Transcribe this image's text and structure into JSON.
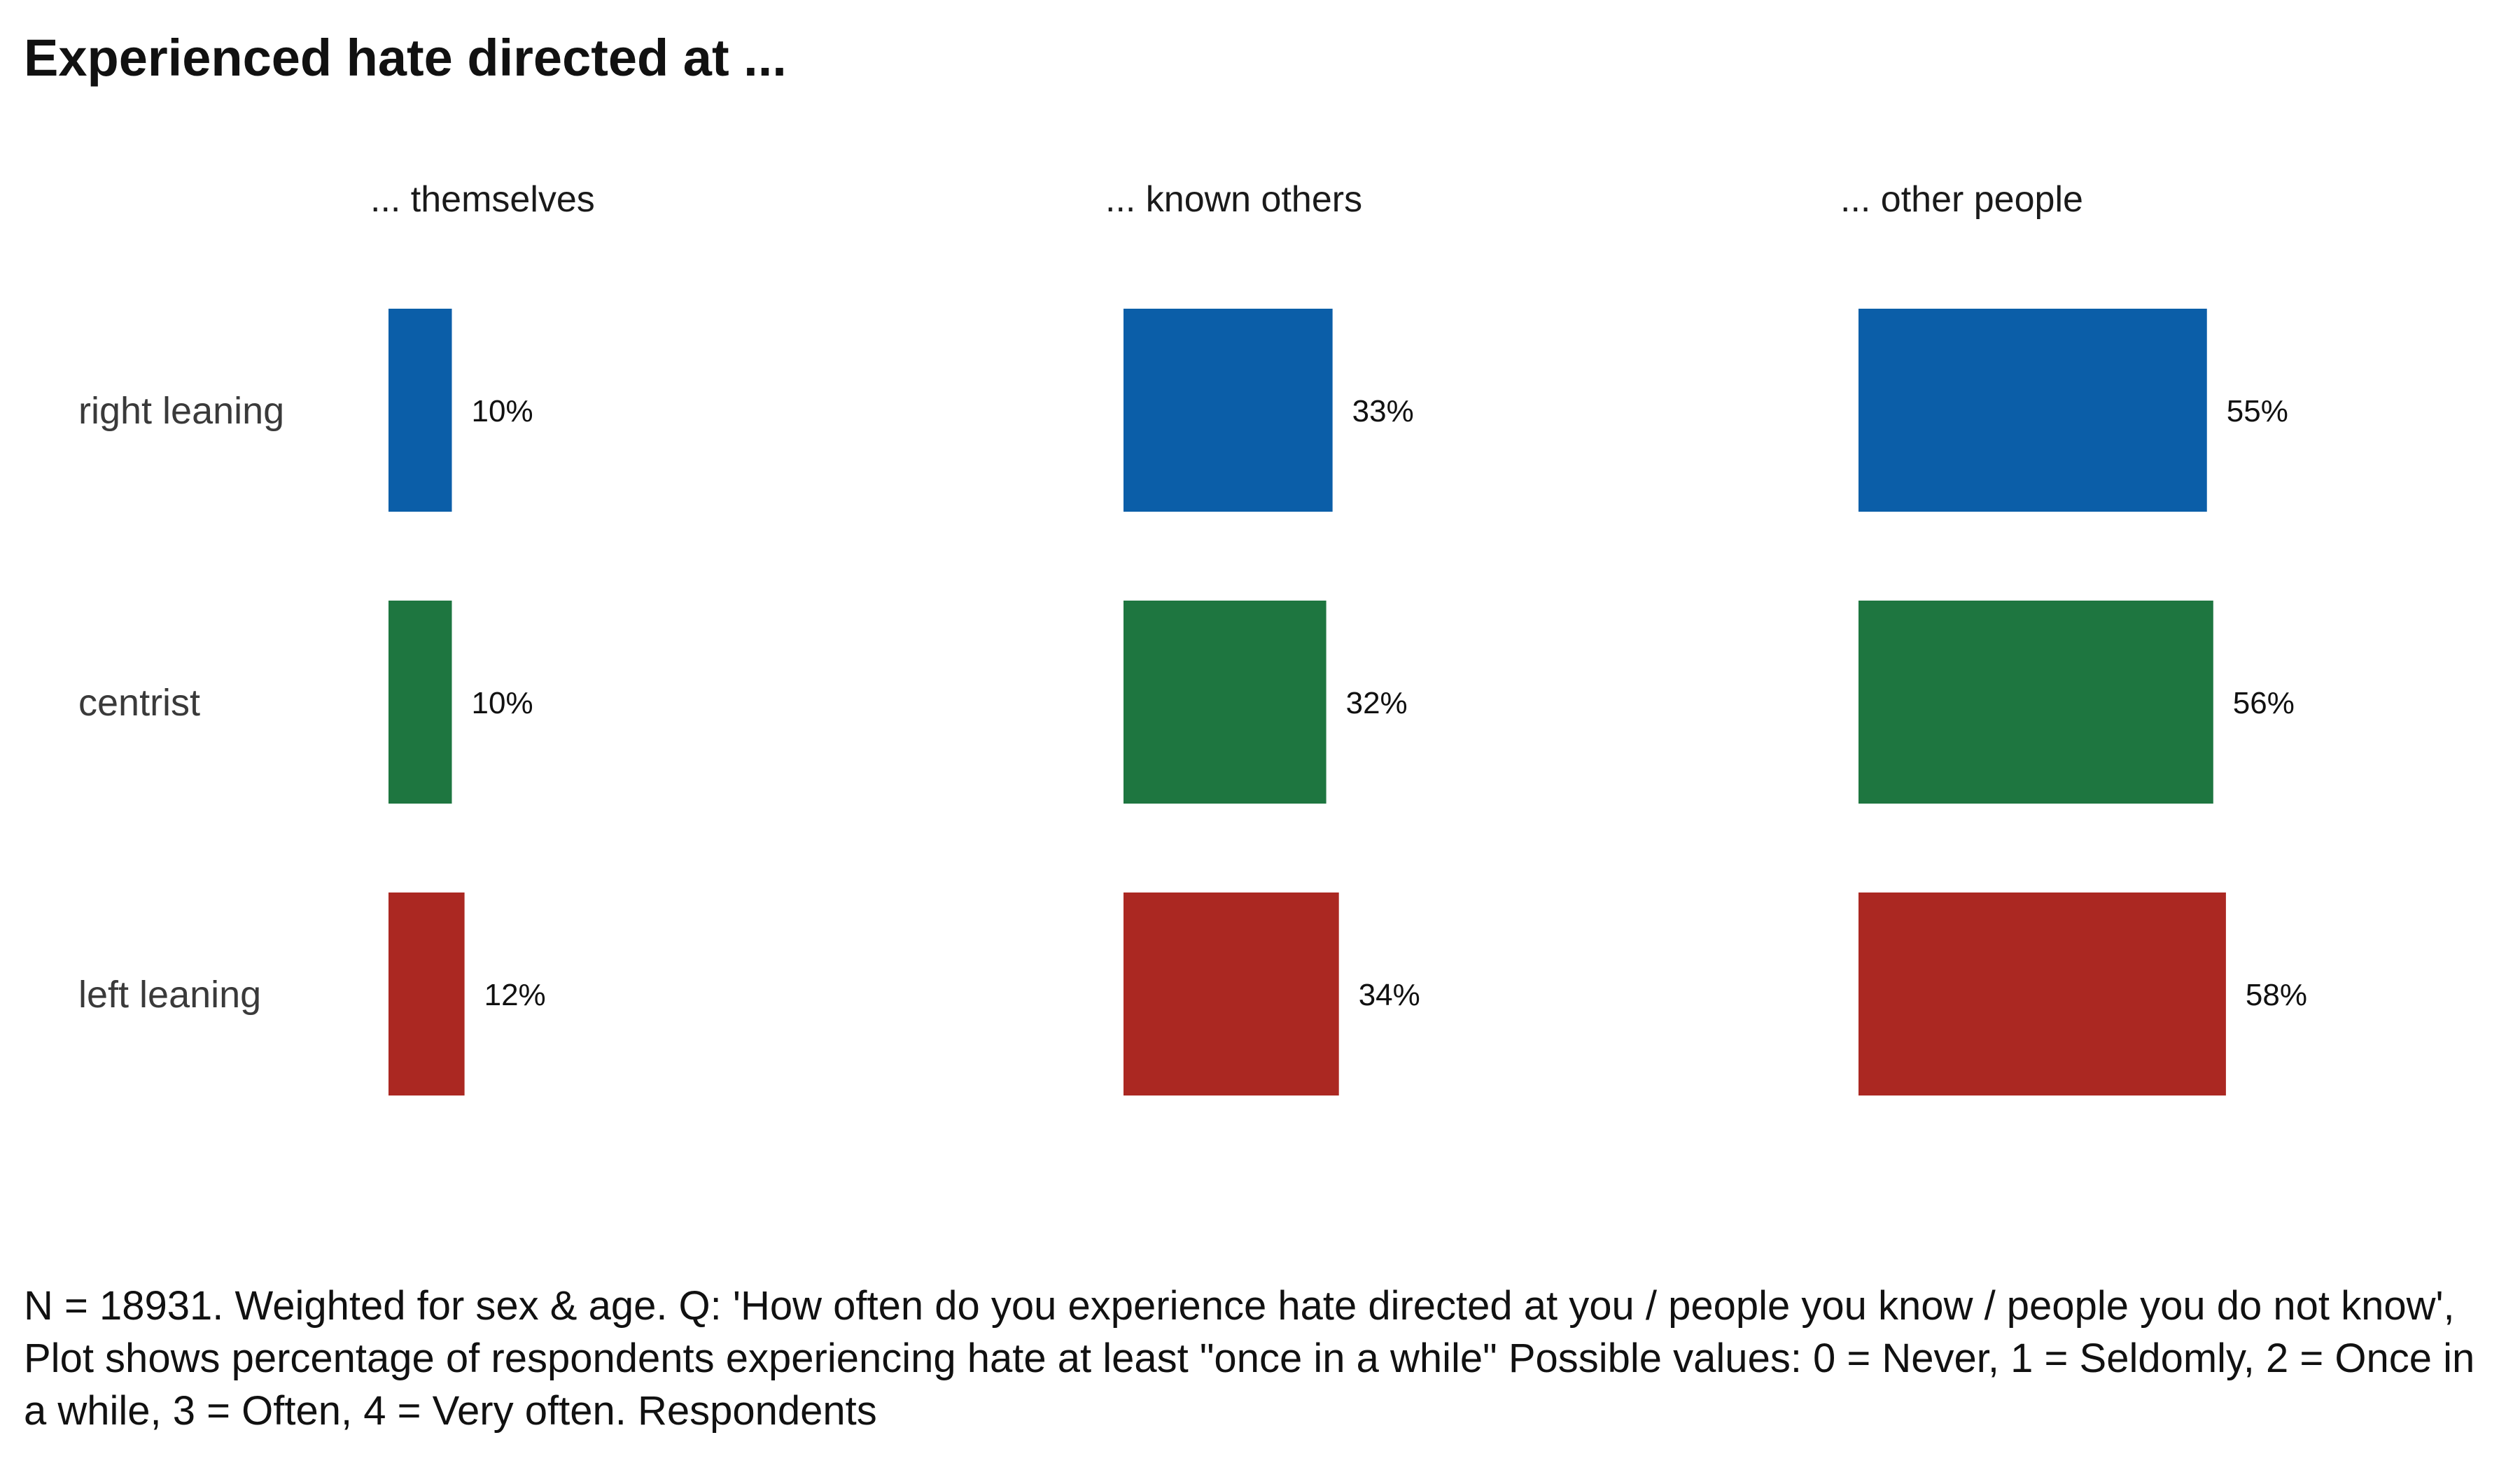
{
  "chart_data": {
    "type": "bar",
    "orientation": "horizontal",
    "title": "Experienced hate directed at ...",
    "facets": [
      "... themselves",
      "... known others",
      "... other people"
    ],
    "categories": [
      "right leaning",
      "centrist",
      "left leaning"
    ],
    "value_suffix": "%",
    "colors": [
      "#0b5ea8",
      "#1e7640",
      "#ab2822"
    ],
    "series": [
      {
        "facet": "... themselves",
        "values": [
          10,
          10,
          12
        ]
      },
      {
        "facet": "... known others",
        "values": [
          33,
          32,
          34
        ]
      },
      {
        "facet": "... other people",
        "values": [
          55,
          56,
          58
        ]
      }
    ],
    "xlim": [
      0,
      100
    ],
    "grid": false,
    "legend": "none"
  },
  "caption": "N = 18931. Weighted for sex & age. Q: 'How often do you experience hate directed at you / people you know / people you do not know', Plot shows percentage of respondents experiencing hate at least \"once in a while\" Possible values: 0 = Never, 1 = Seldomly, 2 = Once in a while, 3 = Often, 4 = Very often. Respondents"
}
